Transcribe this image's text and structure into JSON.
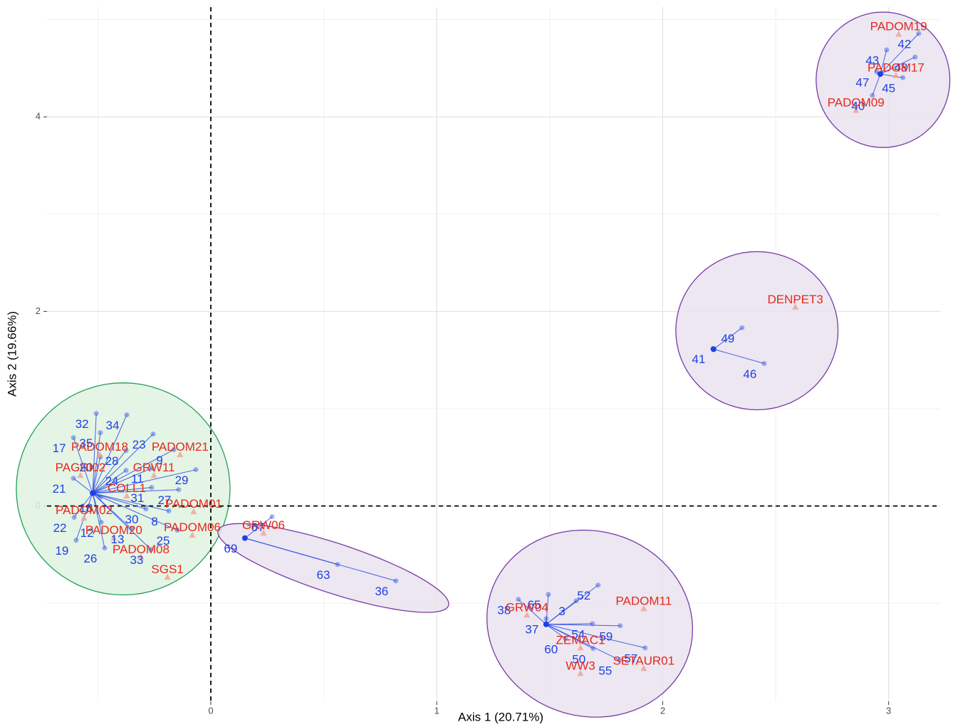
{
  "chart_data": {
    "type": "scatter",
    "xlabel": "Axis 1 (20.71%)",
    "ylabel": "Axis 2 (19.66%)",
    "xlim": [
      -0.725,
      3.228
    ],
    "ylim": [
      -2.008,
      5.128
    ],
    "xticks": [
      0,
      1,
      2,
      3
    ],
    "yticks": [
      0,
      2,
      4
    ],
    "grid": true,
    "minor_xgrid": [
      -0.5,
      0.5,
      1.5,
      2.5
    ],
    "minor_ygrid": [
      -1,
      1,
      3,
      5
    ],
    "reference_lines": {
      "x": 0,
      "y": 0
    },
    "groups": [
      {
        "centroid": [
          -0.523,
          0.132
        ],
        "ellipse": {
          "center": [
            -0.388,
            0.176
          ],
          "a": [
            0.473,
            0
          ],
          "b": [
            0,
            1.09
          ]
        },
        "color": "#23a05a",
        "fill": "#dff2e1"
      },
      {
        "centroid": [
          0.151,
          -0.33
        ],
        "ellipse": {
          "center": [
            0.542,
            -0.637
          ],
          "a": [
            0.51,
            -0.386
          ],
          "b": [
            -0.034,
            -0.244
          ]
        },
        "color": "#7a3aa8",
        "fill": "#e9e3ef"
      },
      {
        "centroid": [
          1.484,
          -1.216
        ],
        "ellipse": {
          "center": [
            1.677,
            -1.209
          ],
          "a": [
            0.441,
            -0.293
          ],
          "b": [
            -0.113,
            -0.916
          ]
        },
        "color": "#7a3aa8",
        "fill": "#e9e3ef"
      },
      {
        "centroid": [
          2.225,
          1.612
        ],
        "ellipse": {
          "center": [
            2.417,
            1.802
          ],
          "a": [
            0.359,
            0
          ],
          "b": [
            0,
            0.813
          ]
        },
        "color": "#7a3aa8",
        "fill": "#e9e3ef"
      },
      {
        "centroid": [
          2.963,
          4.44
        ],
        "ellipse": {
          "center": [
            2.975,
            4.381
          ],
          "a": [
            0.296,
            0
          ],
          "b": [
            0,
            0.696
          ]
        },
        "color": "#7a3aa8",
        "fill": "#e9e3ef"
      }
    ],
    "samples": {
      "color": "#1f40e6",
      "labels": [
        "32",
        "34",
        "35",
        "17",
        "28",
        "23",
        "20",
        "9",
        "24",
        "11",
        "29",
        "21",
        "31",
        "27",
        "18",
        "30",
        "8",
        "22",
        "12",
        "13",
        "25",
        "19",
        "26",
        "33",
        "69",
        "67",
        "63",
        "36",
        "38",
        "65",
        "3",
        "37",
        "52",
        "54",
        "59",
        "60",
        "50",
        "57",
        "55",
        "41",
        "46",
        "49",
        "42",
        "43",
        "48",
        "47",
        "45",
        "40"
      ],
      "x": [
        -0.507,
        -0.372,
        -0.489,
        -0.608,
        -0.375,
        -0.255,
        -0.489,
        -0.164,
        -0.375,
        -0.262,
        -0.066,
        -0.608,
        -0.262,
        -0.142,
        -0.489,
        -0.287,
        -0.186,
        -0.605,
        -0.485,
        -0.35,
        -0.148,
        -0.596,
        -0.47,
        -0.265,
        0.151,
        0.271,
        0.561,
        0.819,
        1.361,
        1.494,
        1.617,
        1.484,
        1.714,
        1.689,
        1.812,
        1.569,
        1.692,
        1.922,
        1.809,
        2.222,
        2.449,
        2.351,
        3.133,
        2.991,
        3.117,
        2.947,
        3.063,
        2.928
      ],
      "y": [
        0.952,
        0.938,
        0.754,
        0.703,
        0.571,
        0.74,
        0.505,
        0.579,
        0.366,
        0.388,
        0.373,
        0.285,
        0.19,
        0.168,
        0.088,
        -0.03,
        -0.051,
        -0.117,
        -0.169,
        -0.235,
        -0.249,
        -0.352,
        -0.432,
        -0.447,
        -0.33,
        -0.11,
        -0.601,
        -0.769,
        -0.96,
        -0.908,
        -0.974,
        -1.158,
        -0.813,
        -1.209,
        -1.231,
        -1.363,
        -1.465,
        -1.458,
        -1.582,
        1.619,
        1.465,
        1.832,
        4.857,
        4.689,
        4.615,
        4.462,
        4.403,
        4.22
      ],
      "group": [
        0,
        0,
        0,
        0,
        0,
        0,
        0,
        0,
        0,
        0,
        0,
        0,
        0,
        0,
        0,
        0,
        0,
        0,
        0,
        0,
        0,
        0,
        0,
        0,
        1,
        1,
        1,
        1,
        2,
        2,
        2,
        2,
        2,
        2,
        2,
        2,
        2,
        2,
        2,
        3,
        3,
        3,
        4,
        4,
        4,
        4,
        4,
        4
      ]
    },
    "species": {
      "color": "#e5281c",
      "marker_color": "#f2a093",
      "labels": [
        "PADOM18",
        "PADOM21",
        "PAGRI02",
        "GRW11",
        "COLL1",
        "PADOM01",
        "PADOM02",
        "PADOM06",
        "PADOM20",
        "PADOM08",
        "SGS1",
        "GRW06",
        "GRW04",
        "PADOM11",
        "ZEMAC1",
        "SETAUR01",
        "WW3",
        "DENPET3",
        "PADOM19",
        "PADOM17",
        "PADOM09"
      ],
      "x": [
        -0.492,
        -0.136,
        -0.577,
        -0.252,
        -0.372,
        -0.076,
        -0.561,
        -0.082,
        -0.429,
        -0.309,
        -0.192,
        0.233,
        1.399,
        1.916,
        1.636,
        1.916,
        1.636,
        2.587,
        3.044,
        3.032,
        2.855
      ],
      "y": [
        0.601,
        0.601,
        0.388,
        0.388,
        0.176,
        0.015,
        -0.051,
        -0.227,
        -0.256,
        -0.454,
        -0.659,
        -0.205,
        -1.048,
        -0.982,
        -1.385,
        -1.597,
        -1.648,
        2.117,
        4.923,
        4.498,
        4.139
      ]
    }
  }
}
